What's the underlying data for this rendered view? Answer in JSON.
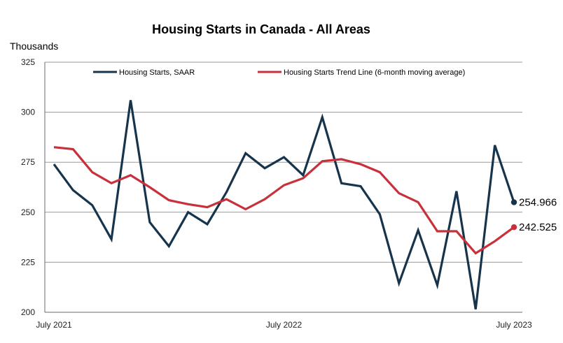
{
  "chart_data": {
    "type": "line",
    "title": "Housing Starts in Canada - All Areas",
    "ylabel": "Thousands",
    "xlabel": "",
    "ylim": [
      200,
      325
    ],
    "yticks": [
      200,
      225,
      250,
      275,
      300,
      325
    ],
    "grid": true,
    "legend_position": "top",
    "x": [
      "2021-07",
      "2021-08",
      "2021-09",
      "2021-10",
      "2021-11",
      "2021-12",
      "2022-01",
      "2022-02",
      "2022-03",
      "2022-04",
      "2022-05",
      "2022-06",
      "2022-07",
      "2022-08",
      "2022-09",
      "2022-10",
      "2022-11",
      "2022-12",
      "2023-01",
      "2023-02",
      "2023-03",
      "2023-04",
      "2023-05",
      "2023-06",
      "2023-07"
    ],
    "xtick_labels": [
      {
        "index": 0,
        "label": "July 2021"
      },
      {
        "index": 12,
        "label": "July 2022"
      },
      {
        "index": 24,
        "label": "July 2023"
      }
    ],
    "series": [
      {
        "name": "Housing Starts, SAAR",
        "color": "#17344d",
        "values": [
          274,
          261,
          253.5,
          236.5,
          306,
          245,
          233,
          250,
          244,
          260,
          279.5,
          272,
          277.5,
          268.5,
          297.5,
          264.5,
          263,
          249,
          214.5,
          241,
          213.5,
          260.5,
          201.5,
          283.5,
          254.966
        ],
        "end_label": "254.966"
      },
      {
        "name": "Housing Starts Trend Line (6-month moving average)",
        "color": "#c8303c",
        "values": [
          282.5,
          281.5,
          270,
          264.5,
          268.5,
          262.5,
          256,
          254,
          252.5,
          256.5,
          251.5,
          256.5,
          263.5,
          267,
          275.5,
          276.5,
          274,
          270,
          259.5,
          255,
          240.5,
          240.5,
          229.5,
          235.5,
          242.525
        ],
        "end_label": "242.525"
      }
    ]
  }
}
